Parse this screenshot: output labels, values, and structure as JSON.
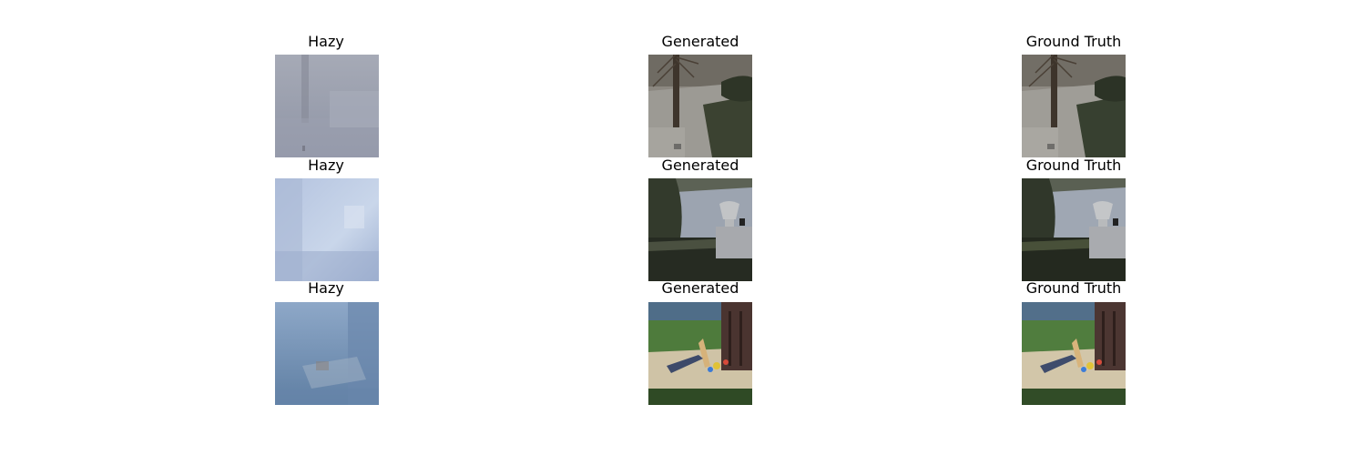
{
  "figure": {
    "rows": [
      {
        "hazy": {
          "title": "Hazy",
          "scene": "hazy garden tree"
        },
        "generated": {
          "title": "Generated",
          "scene": "dehazed garden tree"
        },
        "truth": {
          "title": "Ground Truth",
          "scene": "clear garden tree"
        }
      },
      {
        "hazy": {
          "title": "Hazy",
          "scene": "hazy garden urn"
        },
        "generated": {
          "title": "Generated",
          "scene": "dehazed garden urn"
        },
        "truth": {
          "title": "Ground Truth",
          "scene": "clear garden urn"
        }
      },
      {
        "hazy": {
          "title": "Hazy",
          "scene": "hazy sandbox playground"
        },
        "generated": {
          "title": "Generated",
          "scene": "dehazed sandbox playground"
        },
        "truth": {
          "title": "Ground Truth",
          "scene": "clear sandbox playground"
        }
      }
    ]
  }
}
